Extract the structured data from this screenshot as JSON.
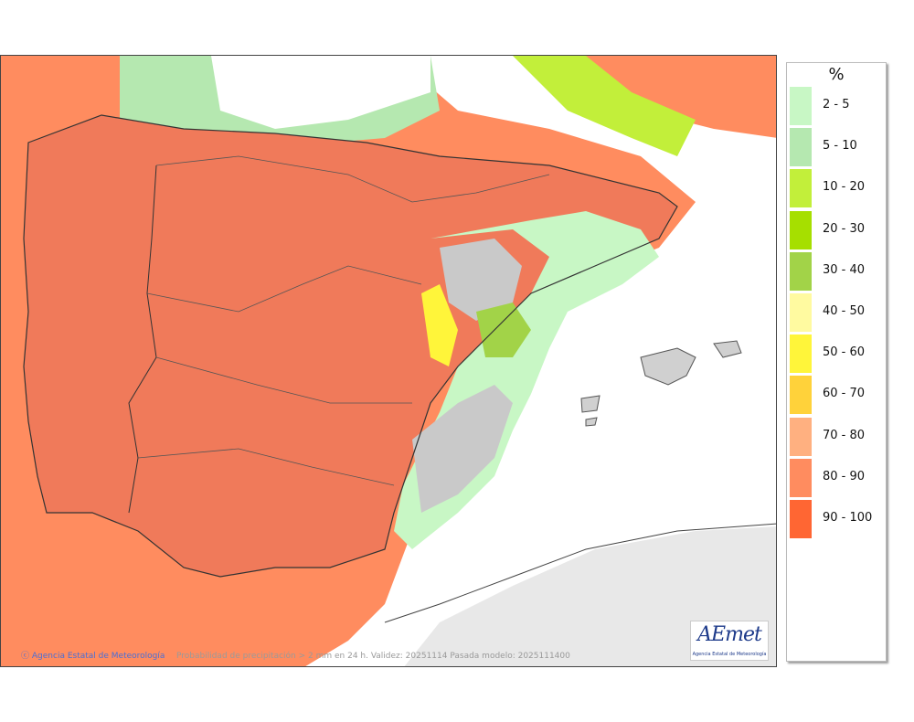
{
  "map": {
    "footer_credit": "Agencia Estatal de Meteorología",
    "footer_caption": "Probabilidad de precipitación > 2 mm en 24 h. Validez: 20251114 Pasada modelo: 2025111400",
    "logo_text": "AEmet",
    "logo_subtext": "Agencia Estatal de Meteorología",
    "region_labels": []
  },
  "legend": {
    "title": "%",
    "items": [
      {
        "label": "2 - 5",
        "color": "#c8f7c5"
      },
      {
        "label": "5 - 10",
        "color": "#b5e8b0"
      },
      {
        "label": "10 - 20",
        "color": "#c2ef3a"
      },
      {
        "label": "20 - 30",
        "color": "#a6df00"
      },
      {
        "label": "30 - 40",
        "color": "#a2d348"
      },
      {
        "label": "40 - 50",
        "color": "#fffaa0"
      },
      {
        "label": "50 - 60",
        "color": "#fff53a"
      },
      {
        "label": "60 - 70",
        "color": "#ffd23a"
      },
      {
        "label": "70 - 80",
        "color": "#ffb080"
      },
      {
        "label": "80 - 90",
        "color": "#ff8c5f"
      },
      {
        "label": "90 - 100",
        "color": "#ff6633"
      }
    ]
  },
  "colors": {
    "land_high": "#f07a5a",
    "sea_gray": "#e8e8e8",
    "relief_gray": "#c9c9c9",
    "border_dark": "#333333"
  }
}
